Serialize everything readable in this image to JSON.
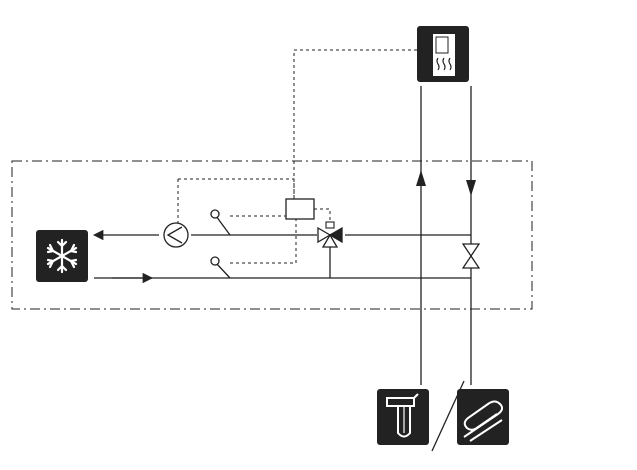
{
  "colors": {
    "background": "#ffffff",
    "line": "#222222",
    "icon_fill": "#222222",
    "icon_glyph": "#ffffff"
  },
  "icons": {
    "cooling_unit": "snowflake-icon",
    "hot_water_heater": "hot-water-heater-icon",
    "ground_probe": "ground-probe-icon",
    "ground_collector": "ground-collector-icon"
  },
  "components": {
    "circulation_pump": "pump-icon",
    "mixing_valve": "three-way-valve-icon",
    "shutoff_valve": "two-way-valve-icon",
    "sensor_supply": "temperature-sensor-icon",
    "sensor_return": "temperature-sensor-icon",
    "controller": "control-module-box"
  }
}
